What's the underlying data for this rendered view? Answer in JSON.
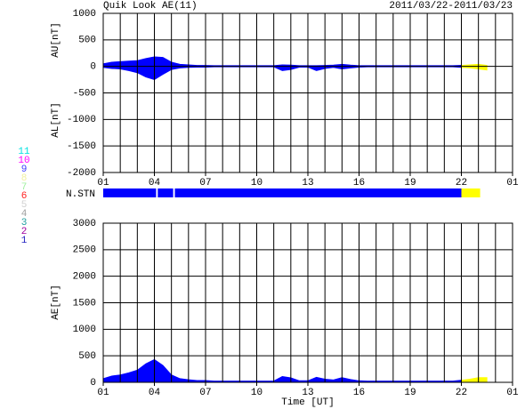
{
  "chart_data": [
    {
      "type": "area",
      "title": "Quik Look AE(11)",
      "subtitle": "2011/03/22-2011/03/23",
      "ylabels": [
        "AU[nT]",
        "AL[nT]"
      ],
      "x": [
        0,
        0.5,
        1,
        1.5,
        2,
        2.5,
        3,
        3.5,
        4,
        4.5,
        5,
        5.5,
        6,
        6.5,
        7,
        7.5,
        8,
        8.5,
        9,
        9.5,
        10,
        10.5,
        11,
        11.5,
        12,
        12.5,
        13,
        13.5,
        14,
        14.5,
        15,
        15.5,
        16,
        16.5,
        17,
        17.5,
        18,
        18.5,
        19,
        19.5,
        20,
        20.5,
        21,
        21.5,
        22,
        22.5
      ],
      "xlim": [
        0,
        24
      ],
      "xticks": [
        {
          "value": 0,
          "label": "01"
        },
        {
          "value": 3,
          "label": "04"
        },
        {
          "value": 6,
          "label": "07"
        },
        {
          "value": 9,
          "label": "10"
        },
        {
          "value": 12,
          "label": "13"
        },
        {
          "value": 15,
          "label": "16"
        },
        {
          "value": 18,
          "label": "19"
        },
        {
          "value": 21,
          "label": "22"
        },
        {
          "value": 24,
          "label": "01"
        }
      ],
      "x_grid_step": 1,
      "ylim": [
        -2000,
        1000
      ],
      "yticks": [
        -2000,
        -1500,
        -1000,
        -500,
        0,
        500,
        1000
      ],
      "series": [
        {
          "color": "#0000ff",
          "values": [
            50,
            80,
            90,
            100,
            110,
            150,
            180,
            170,
            80,
            40,
            30,
            20,
            20,
            15,
            15,
            15,
            15,
            15,
            15,
            15,
            15,
            30,
            25,
            15,
            15,
            15,
            20,
            25,
            40,
            25,
            15,
            15,
            15,
            15,
            15,
            15,
            15,
            15,
            15,
            15,
            15,
            15,
            20,
            null,
            null,
            null
          ]
        },
        {
          "color": "#ffff00",
          "values": [
            null,
            null,
            null,
            null,
            null,
            null,
            null,
            null,
            null,
            null,
            null,
            null,
            null,
            null,
            null,
            null,
            null,
            null,
            null,
            null,
            null,
            null,
            null,
            null,
            null,
            null,
            null,
            null,
            null,
            null,
            null,
            null,
            null,
            null,
            null,
            null,
            null,
            null,
            null,
            null,
            null,
            null,
            20,
            30,
            40,
            20
          ]
        },
        {
          "color": "#0000ff",
          "values": [
            -20,
            -40,
            -50,
            -80,
            -120,
            -200,
            -250,
            -150,
            -60,
            -30,
            -20,
            -15,
            -15,
            -10,
            -10,
            -10,
            -10,
            -10,
            -10,
            -10,
            -10,
            -80,
            -60,
            -15,
            -15,
            -80,
            -40,
            -20,
            -50,
            -30,
            -15,
            -10,
            -10,
            -10,
            -10,
            -10,
            -10,
            -10,
            -10,
            -10,
            -10,
            -10,
            -20,
            null,
            null,
            null
          ]
        },
        {
          "color": "#ffff00",
          "values": [
            null,
            null,
            null,
            null,
            null,
            null,
            null,
            null,
            null,
            null,
            null,
            null,
            null,
            null,
            null,
            null,
            null,
            null,
            null,
            null,
            null,
            null,
            null,
            null,
            null,
            null,
            null,
            null,
            null,
            null,
            null,
            null,
            null,
            null,
            null,
            null,
            null,
            null,
            null,
            null,
            null,
            null,
            -20,
            -30,
            -50,
            -70
          ]
        }
      ]
    },
    {
      "type": "area",
      "ylabels": [
        "AE[nT]"
      ],
      "xlabel": "Time [UT]",
      "x": [
        0,
        0.5,
        1,
        1.5,
        2,
        2.5,
        3,
        3.5,
        4,
        4.5,
        5,
        5.5,
        6,
        6.5,
        7,
        7.5,
        8,
        8.5,
        9,
        9.5,
        10,
        10.5,
        11,
        11.5,
        12,
        12.5,
        13,
        13.5,
        14,
        14.5,
        15,
        15.5,
        16,
        16.5,
        17,
        17.5,
        18,
        18.5,
        19,
        19.5,
        20,
        20.5,
        21,
        21.5,
        22,
        22.5
      ],
      "xlim": [
        0,
        24
      ],
      "xticks": [
        {
          "value": 0,
          "label": "01"
        },
        {
          "value": 3,
          "label": "04"
        },
        {
          "value": 6,
          "label": "07"
        },
        {
          "value": 9,
          "label": "10"
        },
        {
          "value": 12,
          "label": "13"
        },
        {
          "value": 15,
          "label": "16"
        },
        {
          "value": 18,
          "label": "19"
        },
        {
          "value": 21,
          "label": "22"
        },
        {
          "value": 24,
          "label": "01"
        }
      ],
      "x_grid_step": 1,
      "ylim": [
        0,
        3000
      ],
      "yticks": [
        0,
        500,
        1000,
        1500,
        2000,
        2500,
        3000
      ],
      "series": [
        {
          "color": "#0000ff",
          "values": [
            70,
            120,
            140,
            180,
            230,
            350,
            430,
            320,
            140,
            70,
            50,
            35,
            35,
            25,
            25,
            25,
            25,
            25,
            25,
            25,
            25,
            110,
            85,
            30,
            30,
            95,
            60,
            45,
            90,
            55,
            30,
            25,
            25,
            25,
            25,
            25,
            25,
            25,
            25,
            25,
            25,
            25,
            40,
            null,
            null,
            null
          ]
        },
        {
          "color": "#ffff00",
          "values": [
            null,
            null,
            null,
            null,
            null,
            null,
            null,
            null,
            null,
            null,
            null,
            null,
            null,
            null,
            null,
            null,
            null,
            null,
            null,
            null,
            null,
            null,
            null,
            null,
            null,
            null,
            null,
            null,
            null,
            null,
            null,
            null,
            null,
            null,
            null,
            null,
            null,
            null,
            null,
            null,
            null,
            null,
            40,
            60,
            90,
            90
          ]
        }
      ]
    }
  ],
  "stations": {
    "label": "N.STN",
    "segments": [
      {
        "start": 0,
        "end": 3.1,
        "color": "#0000ff"
      },
      {
        "start": 3.2,
        "end": 4.1,
        "color": "#0000ff"
      },
      {
        "start": 4.2,
        "end": 21,
        "color": "#0000ff"
      },
      {
        "start": 21,
        "end": 22.1,
        "color": "#ffff00"
      }
    ]
  },
  "legend": [
    {
      "label": "11",
      "color": "#00e0e0"
    },
    {
      "label": "10",
      "color": "#ff00ff"
    },
    {
      "label": "9",
      "color": "#4040ff"
    },
    {
      "label": "8",
      "color": "#f0f0a0"
    },
    {
      "label": "7",
      "color": "#a0f0a0"
    },
    {
      "label": "6",
      "color": "#ff2020"
    },
    {
      "label": "5",
      "color": "#d0d0d0"
    },
    {
      "label": "4",
      "color": "#a0a0a0"
    },
    {
      "label": "3",
      "color": "#20a0a0"
    },
    {
      "label": "2",
      "color": "#a000a0"
    },
    {
      "label": "1",
      "color": "#2020c0"
    }
  ]
}
